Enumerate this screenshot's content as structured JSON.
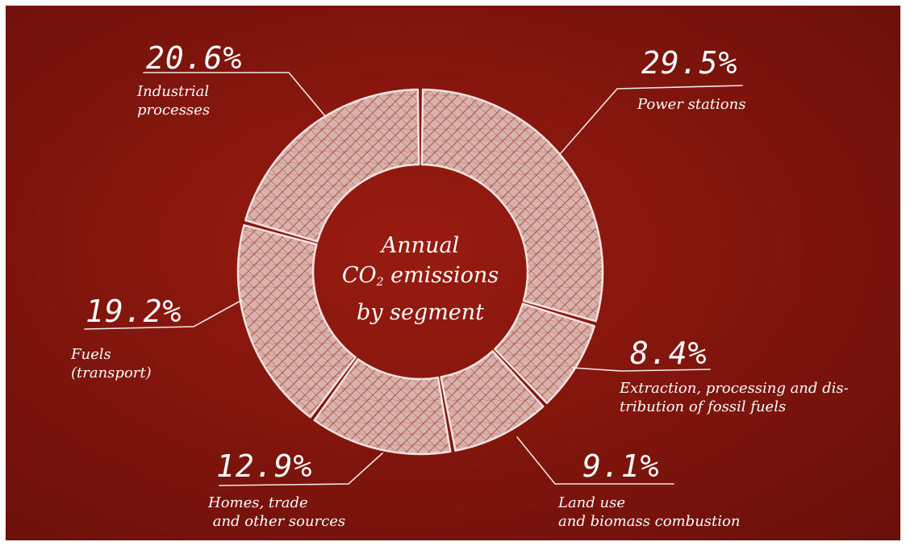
{
  "colors": {
    "background_center": "#991b10",
    "background_edge": "#6a100a",
    "chalk": "#ffffff"
  },
  "center_title": {
    "line1": "Annual",
    "line2_prefix": "CO",
    "line2_sub": "2",
    "line2_suffix": " emissions",
    "line3": "by segment"
  },
  "chart_data": {
    "type": "pie",
    "title": "Annual CO2 emissions by segment",
    "donut": true,
    "categories": [
      "Power stations",
      "Extraction, processing and distribution of fossil fuels",
      "Land use and biomass combustion",
      "Homes, trade and other sources",
      "Fuels (transport)",
      "Industrial processes"
    ],
    "values": [
      29.5,
      8.4,
      9.1,
      12.9,
      19.2,
      20.6
    ],
    "value_labels": [
      "29.5%",
      "8.4%",
      "9.1%",
      "12.9%",
      "19.2%",
      "20.6%"
    ],
    "category_labels": [
      "Power stations",
      "Extraction, processing and dis-\ntribution of fossil fuels",
      "Land use\nand biomass combustion",
      "Homes, trade\n and other sources",
      "Fuels\n(transport)",
      "Industrial\nprocesses"
    ],
    "unit": "%",
    "start_angle_deg": 0,
    "direction": "clockwise"
  }
}
